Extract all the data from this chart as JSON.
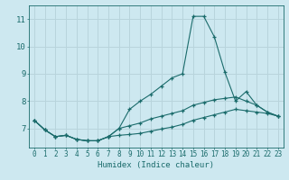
{
  "xlabel": "Humidex (Indice chaleur)",
  "xlim": [
    -0.5,
    23.5
  ],
  "ylim": [
    6.3,
    11.5
  ],
  "yticks": [
    7,
    8,
    9,
    10,
    11
  ],
  "xticks": [
    0,
    1,
    2,
    3,
    4,
    5,
    6,
    7,
    8,
    9,
    10,
    11,
    12,
    13,
    14,
    15,
    16,
    17,
    18,
    19,
    20,
    21,
    22,
    23
  ],
  "bg_color": "#cde8f0",
  "grid_color": "#b8d4dc",
  "line_color": "#1a6b6b",
  "series": [
    {
      "x": [
        0,
        1,
        2,
        3,
        4,
        5,
        6,
        7,
        8,
        9,
        10,
        11,
        12,
        13,
        14,
        15,
        16,
        17,
        18,
        19,
        20,
        21,
        22,
        23
      ],
      "y": [
        7.3,
        6.95,
        6.7,
        6.75,
        6.6,
        6.55,
        6.55,
        6.7,
        7.0,
        7.7,
        8.0,
        8.25,
        8.55,
        8.85,
        9.0,
        11.1,
        11.1,
        10.35,
        9.05,
        8.0,
        8.35,
        7.85,
        7.6,
        7.45
      ]
    },
    {
      "x": [
        0,
        1,
        2,
        3,
        4,
        5,
        6,
        7,
        8,
        9,
        10,
        11,
        12,
        13,
        14,
        15,
        16,
        17,
        18,
        19,
        20,
        21,
        22,
        23
      ],
      "y": [
        7.3,
        6.95,
        6.7,
        6.75,
        6.6,
        6.55,
        6.55,
        6.7,
        7.0,
        7.1,
        7.2,
        7.35,
        7.45,
        7.55,
        7.65,
        7.85,
        7.95,
        8.05,
        8.1,
        8.15,
        8.0,
        7.85,
        7.6,
        7.45
      ]
    },
    {
      "x": [
        0,
        1,
        2,
        3,
        4,
        5,
        6,
        7,
        8,
        9,
        10,
        11,
        12,
        13,
        14,
        15,
        16,
        17,
        18,
        19,
        20,
        21,
        22,
        23
      ],
      "y": [
        7.3,
        6.95,
        6.7,
        6.75,
        6.6,
        6.55,
        6.55,
        6.7,
        6.75,
        6.78,
        6.82,
        6.9,
        6.98,
        7.05,
        7.15,
        7.3,
        7.4,
        7.5,
        7.6,
        7.7,
        7.65,
        7.6,
        7.55,
        7.45
      ]
    }
  ]
}
